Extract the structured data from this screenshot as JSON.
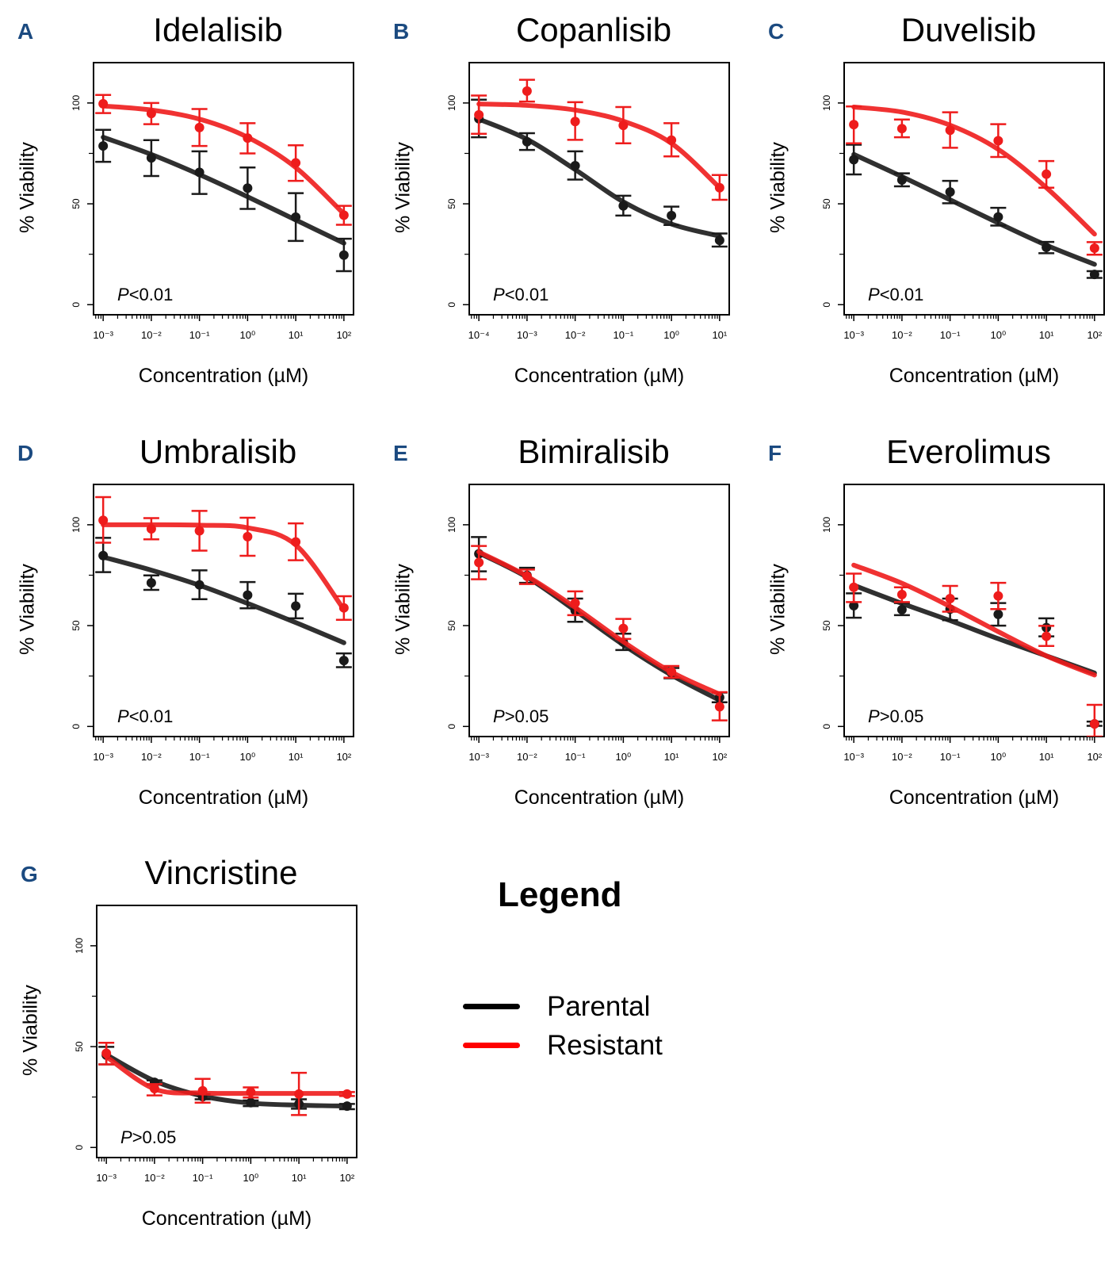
{
  "legend": {
    "title": "Legend",
    "items": [
      {
        "label": "Parental",
        "color": "#000000"
      },
      {
        "label": "Resistant",
        "color": "#ff0000"
      }
    ]
  },
  "colors": {
    "parental": "#1a1a1a",
    "resistant": "#ee1c1c",
    "panel_letter": "#1b4a80"
  },
  "chart_data": [
    {
      "type": "line",
      "panel": "A",
      "title": "Idelalisib",
      "xlabel": "Concentration (µM)",
      "ylabel": "% Viability",
      "xscale": "log10",
      "xlim_log10": [
        -3.2,
        2.2
      ],
      "ylim": [
        -5,
        120
      ],
      "yticks": [
        0,
        50,
        100
      ],
      "yminor": [
        25,
        75
      ],
      "xtick_exponents": [
        -3,
        -2,
        -1,
        0,
        1,
        2
      ],
      "annotation": {
        "prefix": "P",
        "text": "<0.01"
      },
      "x": [
        0.001,
        0.01,
        0.1,
        1,
        10,
        100
      ],
      "series": [
        {
          "name": "Parental",
          "values": [
            78.7,
            72.8,
            65.6,
            57.8,
            43.4,
            24.6
          ],
          "err_low": [
            70.8,
            63.8,
            54.9,
            47.5,
            31.6,
            16.6
          ],
          "err_high": [
            86.7,
            81.6,
            76.0,
            68.0,
            55.3,
            32.7
          ],
          "fit": [
            83,
            74.5,
            64.5,
            53.5,
            42,
            30.5
          ]
        },
        {
          "name": "Resistant",
          "values": [
            99.6,
            94.8,
            87.8,
            82.6,
            70.3,
            44.4
          ],
          "err_low": [
            95.0,
            89.5,
            78.7,
            75.0,
            61.4,
            39.6
          ],
          "err_high": [
            104.0,
            100.0,
            97.0,
            90.0,
            79.0,
            49.0
          ],
          "fit": [
            98.5,
            96.5,
            92,
            83,
            68,
            45
          ]
        }
      ]
    },
    {
      "type": "line",
      "panel": "B",
      "title": "Copanlisib",
      "xlabel": "Concentration (µM)",
      "ylabel": "% Viability",
      "xscale": "log10",
      "xlim_log10": [
        -4.2,
        1.2
      ],
      "ylim": [
        -5,
        120
      ],
      "yticks": [
        0,
        50,
        100
      ],
      "yminor": [
        25,
        75
      ],
      "xtick_exponents": [
        -4,
        -3,
        -2,
        -1,
        0,
        1
      ],
      "annotation": {
        "prefix": "P",
        "text": "<0.01"
      },
      "x": [
        0.0001,
        0.001,
        0.01,
        0.1,
        1,
        10
      ],
      "series": [
        {
          "name": "Parental",
          "values": [
            92.2,
            80.8,
            68.9,
            49.0,
            44.2,
            31.9
          ],
          "err_low": [
            83.0,
            76.7,
            62.0,
            44.2,
            39.5,
            28.8
          ],
          "err_high": [
            101.6,
            85.0,
            76.0,
            54.0,
            48.6,
            35.3
          ],
          "fit": [
            92,
            82,
            67,
            51,
            40,
            34
          ]
        },
        {
          "name": "Resistant",
          "values": [
            94.1,
            105.9,
            90.8,
            88.9,
            81.6,
            58.0
          ],
          "err_low": [
            84.7,
            100.7,
            81.7,
            80.0,
            73.5,
            52.0
          ],
          "err_high": [
            103.7,
            111.5,
            100.4,
            98.0,
            90.0,
            64.3
          ],
          "fit": [
            99.5,
            98.8,
            96.5,
            91,
            80,
            58
          ]
        }
      ]
    },
    {
      "type": "line",
      "panel": "C",
      "title": "Duvelisib",
      "xlabel": "Concentration (µM)",
      "ylabel": "% Viability",
      "xscale": "log10",
      "xlim_log10": [
        -3.2,
        2.2
      ],
      "ylim": [
        -5,
        120
      ],
      "yticks": [
        0,
        50,
        100
      ],
      "yminor": [
        25,
        75
      ],
      "xtick_exponents": [
        -3,
        -2,
        -1,
        0,
        1,
        2
      ],
      "annotation": {
        "prefix": "P",
        "text": "<0.01"
      },
      "x": [
        0.001,
        0.01,
        0.1,
        1,
        10,
        100
      ],
      "series": [
        {
          "name": "Parental",
          "values": [
            71.9,
            61.8,
            55.9,
            43.5,
            28.4,
            15.0
          ],
          "err_low": [
            64.6,
            58.7,
            50.3,
            39.2,
            25.5,
            13.3
          ],
          "err_high": [
            79.3,
            65.1,
            61.4,
            48.0,
            31.1,
            16.6
          ],
          "fit": [
            74.5,
            63.5,
            52,
            40.5,
            29.5,
            20
          ]
        },
        {
          "name": "Resistant",
          "values": [
            89.3,
            87.3,
            86.5,
            81.3,
            64.7,
            28.0
          ],
          "err_low": [
            80.0,
            83.0,
            77.8,
            73.2,
            58.0,
            24.8
          ],
          "err_high": [
            98.3,
            91.8,
            95.4,
            89.5,
            71.2,
            31.0
          ],
          "fit": [
            98,
            95.5,
            89,
            77,
            58,
            35
          ]
        }
      ]
    },
    {
      "type": "line",
      "panel": "D",
      "title": "Umbralisib",
      "xlabel": "Concentration (µM)",
      "ylabel": "% Viability",
      "xscale": "log10",
      "xlim_log10": [
        -3.2,
        2.2
      ],
      "ylim": [
        -5,
        120
      ],
      "yticks": [
        0,
        50,
        100
      ],
      "yminor": [
        25,
        75
      ],
      "xtick_exponents": [
        -3,
        -2,
        -1,
        0,
        1,
        2
      ],
      "annotation": {
        "prefix": "P",
        "text": "<0.01"
      },
      "x": [
        0.001,
        0.01,
        0.1,
        1,
        10,
        100
      ],
      "series": [
        {
          "name": "Parental",
          "values": [
            84.7,
            71.2,
            70.2,
            65.1,
            59.7,
            32.7
          ],
          "err_low": [
            76.5,
            67.7,
            63.1,
            58.6,
            53.6,
            29.4
          ],
          "err_high": [
            93.5,
            74.9,
            77.4,
            71.6,
            65.8,
            36.2
          ],
          "fit": [
            84,
            77.5,
            70,
            61,
            51.5,
            41.5
          ]
        },
        {
          "name": "Resistant",
          "values": [
            102.2,
            98.0,
            97.0,
            94.1,
            91.5,
            58.8
          ],
          "err_low": [
            91.1,
            92.8,
            87.2,
            84.6,
            82.4,
            52.9
          ],
          "err_high": [
            113.7,
            103.3,
            106.9,
            103.5,
            100.7,
            64.6
          ],
          "fit": [
            100,
            100,
            99.8,
            98.5,
            90,
            58
          ]
        }
      ]
    },
    {
      "type": "line",
      "panel": "E",
      "title": "Bimiralisib",
      "xlabel": "Concentration (µM)",
      "ylabel": "% Viability",
      "xscale": "log10",
      "xlim_log10": [
        -3.2,
        2.2
      ],
      "ylim": [
        -5,
        120
      ],
      "yticks": [
        0,
        50,
        100
      ],
      "yminor": [
        25,
        75
      ],
      "xtick_exponents": [
        -3,
        -2,
        -1,
        0,
        1,
        2
      ],
      "annotation": {
        "prefix": "P",
        "text": ">0.05"
      },
      "x": [
        0.001,
        0.01,
        0.1,
        1,
        10,
        100
      ],
      "series": [
        {
          "name": "Parental",
          "values": [
            85.6,
            74.9,
            57.5,
            41.8,
            26.5,
            14.4
          ],
          "err_low": [
            76.9,
            71.2,
            51.9,
            37.9,
            23.9,
            12.0
          ],
          "err_high": [
            93.9,
            78.7,
            63.4,
            46.0,
            29.0,
            16.8
          ],
          "fit": [
            86,
            74,
            57.5,
            40.5,
            25.5,
            13
          ]
        },
        {
          "name": "Resistant",
          "values": [
            81.3,
            74.5,
            61.2,
            48.6,
            27.2,
            9.8
          ],
          "err_low": [
            73.0,
            70.6,
            55.2,
            43.4,
            24.2,
            3.0
          ],
          "err_high": [
            89.5,
            77.8,
            67.0,
            53.3,
            30.0,
            17.0
          ],
          "fit": [
            86.5,
            74.5,
            59,
            42,
            27,
            16
          ]
        }
      ]
    },
    {
      "type": "line",
      "panel": "F",
      "title": "Everolimus",
      "xlabel": "Concentration (µM)",
      "ylabel": "% Viability",
      "xscale": "log10",
      "xlim_log10": [
        -3.2,
        2.2
      ],
      "ylim": [
        -5,
        120
      ],
      "yticks": [
        0,
        50,
        100
      ],
      "yminor": [
        25,
        75
      ],
      "xtick_exponents": [
        -3,
        -2,
        -1,
        0,
        1,
        2
      ],
      "annotation": {
        "prefix": "P",
        "text": ">0.05"
      },
      "x": [
        0.001,
        0.01,
        0.1,
        1,
        10,
        100
      ],
      "series": [
        {
          "name": "Parental",
          "values": [
            59.9,
            57.9,
            58.2,
            55.6,
            49.0,
            1.3
          ],
          "err_low": [
            53.9,
            55.2,
            52.7,
            50.0,
            44.7,
            0.3
          ],
          "err_high": [
            66.0,
            61.2,
            63.4,
            61.2,
            53.6,
            2.4
          ],
          "fit": [
            70,
            61,
            52.5,
            43.5,
            35,
            26.5
          ]
        },
        {
          "name": "Resistant",
          "values": [
            69.0,
            65.4,
            63.4,
            64.7,
            44.7,
            1.3
          ],
          "err_low": [
            61.7,
            61.7,
            56.9,
            58.2,
            39.9,
            -5.0
          ],
          "err_high": [
            75.8,
            69.0,
            69.7,
            71.2,
            49.9,
            10.7
          ],
          "fit": [
            80,
            71,
            59.5,
            47,
            35,
            25.5
          ]
        }
      ]
    },
    {
      "type": "line",
      "panel": "G",
      "title": "Vincristine",
      "xlabel": "Concentration (µM)",
      "ylabel": "% Viability",
      "xscale": "log10",
      "xlim_log10": [
        -3.2,
        2.2
      ],
      "ylim": [
        -5,
        120
      ],
      "yticks": [
        0,
        50,
        100
      ],
      "yminor": [
        25,
        75
      ],
      "xtick_exponents": [
        -3,
        -2,
        -1,
        0,
        1,
        2
      ],
      "annotation": {
        "prefix": "P",
        "text": ">0.05"
      },
      "x": [
        0.001,
        0.01,
        0.1,
        1,
        10,
        100
      ],
      "series": [
        {
          "name": "Parental",
          "values": [
            45.8,
            32.3,
            25.2,
            22.2,
            21.6,
            20.5
          ],
          "err_low": [
            41.2,
            31.1,
            23.9,
            20.5,
            19.2,
            19.0
          ],
          "err_high": [
            49.9,
            33.3,
            26.5,
            23.3,
            23.9,
            21.6
          ],
          "fit": [
            46,
            33,
            25.5,
            22,
            21,
            20.5
          ]
        },
        {
          "name": "Resistant",
          "values": [
            46.7,
            29.2,
            28.1,
            27.5,
            26.5,
            26.5
          ],
          "err_low": [
            41.2,
            25.8,
            22.2,
            24.8,
            16.1,
            25.5
          ],
          "err_high": [
            51.9,
            31.4,
            34.0,
            29.8,
            37.0,
            27.5
          ],
          "fit": [
            45,
            29,
            27,
            26.8,
            26.8,
            26.8
          ]
        }
      ]
    }
  ]
}
